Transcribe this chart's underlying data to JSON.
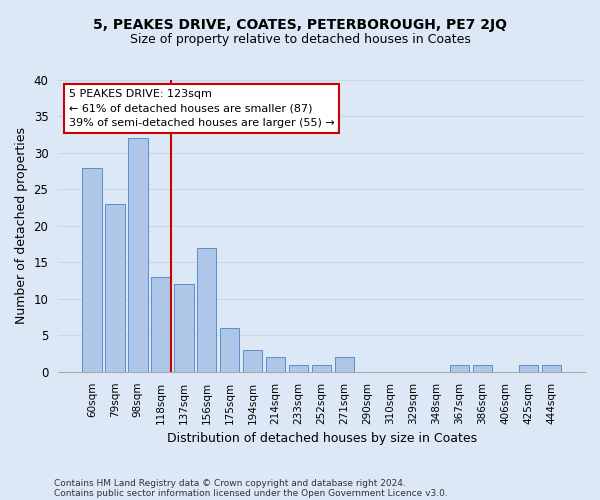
{
  "title1": "5, PEAKES DRIVE, COATES, PETERBOROUGH, PE7 2JQ",
  "title2": "Size of property relative to detached houses in Coates",
  "xlabel": "Distribution of detached houses by size in Coates",
  "ylabel": "Number of detached properties",
  "categories": [
    "60sqm",
    "79sqm",
    "98sqm",
    "118sqm",
    "137sqm",
    "156sqm",
    "175sqm",
    "194sqm",
    "214sqm",
    "233sqm",
    "252sqm",
    "271sqm",
    "290sqm",
    "310sqm",
    "329sqm",
    "348sqm",
    "367sqm",
    "386sqm",
    "406sqm",
    "425sqm",
    "444sqm"
  ],
  "values": [
    28,
    23,
    32,
    13,
    12,
    17,
    6,
    3,
    2,
    1,
    1,
    2,
    0,
    0,
    0,
    0,
    1,
    1,
    0,
    1,
    1
  ],
  "bar_color": "#aec6e8",
  "bar_edge_color": "#5b8fc9",
  "annotation_text_line1": "5 PEAKES DRIVE: 123sqm",
  "annotation_text_line2": "← 61% of detached houses are smaller (87)",
  "annotation_text_line3": "39% of semi-detached houses are larger (55) →",
  "annotation_box_color": "#ffffff",
  "annotation_box_edge_color": "#cc0000",
  "vline_color": "#cc0000",
  "vline_x_index": 3,
  "ylim": [
    0,
    40
  ],
  "yticks": [
    0,
    5,
    10,
    15,
    20,
    25,
    30,
    35,
    40
  ],
  "grid_color": "#c8d8e8",
  "background_color": "#dce8f5",
  "footer1": "Contains HM Land Registry data © Crown copyright and database right 2024.",
  "footer2": "Contains public sector information licensed under the Open Government Licence v3.0."
}
